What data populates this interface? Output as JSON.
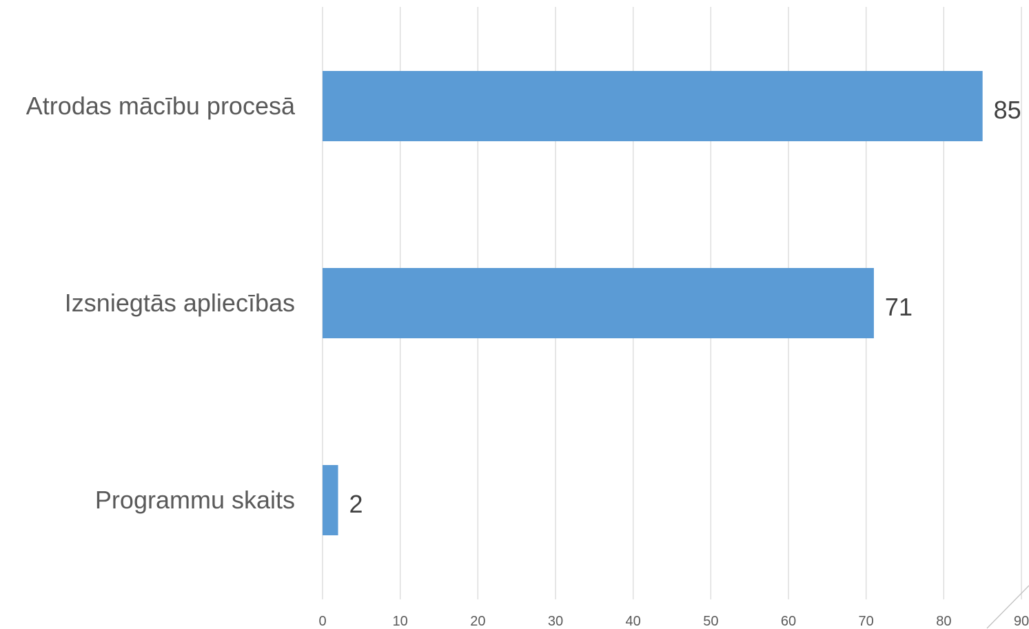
{
  "chart_data": {
    "type": "bar",
    "orientation": "horizontal",
    "categories": [
      "Atrodas mācību procesā",
      "Izsniegtās apliecības",
      "Programmu skaits"
    ],
    "values": [
      85,
      71,
      2
    ],
    "data_labels": [
      "85",
      "71",
      "2"
    ],
    "title": "",
    "xlabel": "",
    "ylabel": "",
    "xlim": [
      0,
      90
    ],
    "xticks": [
      0,
      10,
      20,
      30,
      40,
      50,
      60,
      70,
      80,
      90
    ],
    "tick_labels": [
      "0",
      "10",
      "20",
      "30",
      "40",
      "50",
      "60",
      "70",
      "80",
      "90"
    ],
    "grid": true,
    "legend": "none",
    "colors": {
      "bar": "#5b9bd5",
      "grid": "#d9d9d9",
      "axis_text": "#595959",
      "label_text": "#404040"
    }
  }
}
